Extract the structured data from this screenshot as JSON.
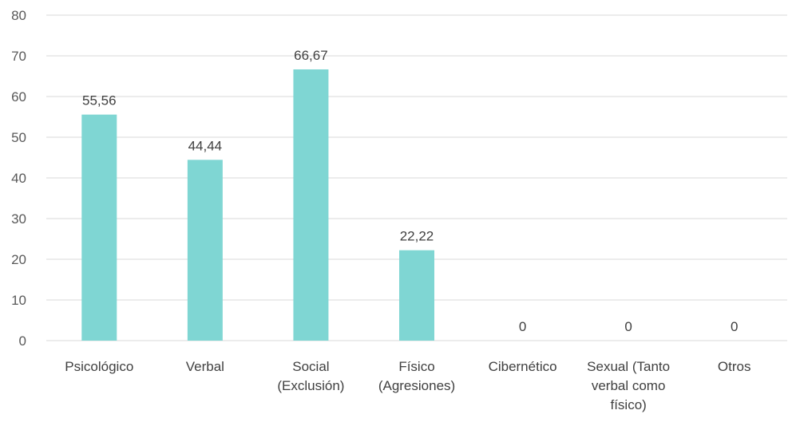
{
  "chart_data": {
    "type": "bar",
    "categories": [
      [
        "Psicológico"
      ],
      [
        "Verbal"
      ],
      [
        "Social",
        "(Exclusión)"
      ],
      [
        "Físico",
        "(Agresiones)"
      ],
      [
        "Cibernético"
      ],
      [
        "Sexual (Tanto",
        "verbal como",
        "físico)"
      ],
      [
        "Otros"
      ]
    ],
    "values": [
      55.56,
      44.44,
      66.67,
      22.22,
      0,
      0,
      0
    ],
    "data_labels": [
      "55,56",
      "44,44",
      "66,67",
      "22,22",
      "0",
      "0",
      "0"
    ],
    "y_ticks": [
      "0",
      "10",
      "20",
      "30",
      "40",
      "50",
      "60",
      "70",
      "80"
    ],
    "ylim": [
      0,
      80
    ],
    "grid": true,
    "bar_color": "#7fd6d3",
    "grid_color": "#d9d9d9"
  }
}
